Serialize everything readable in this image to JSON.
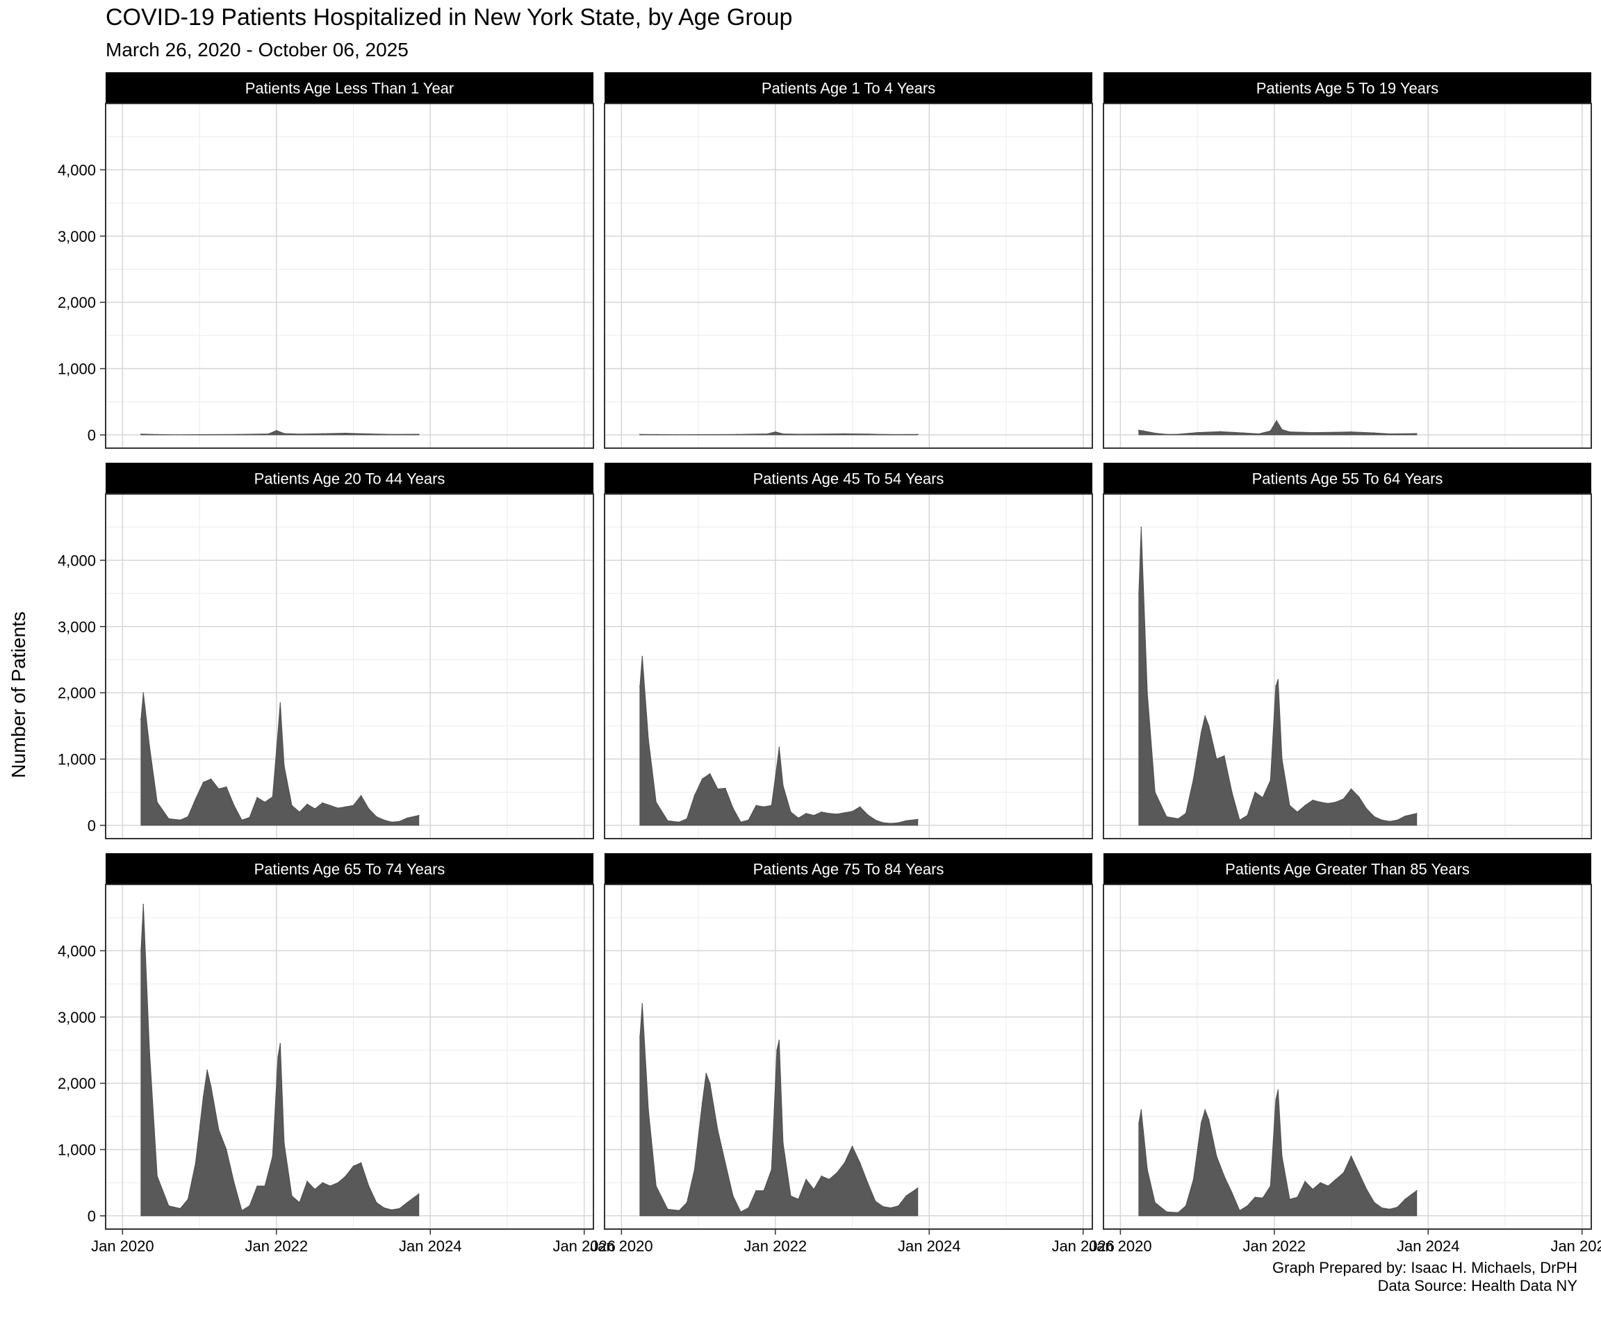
{
  "chart_data": {
    "type": "bar",
    "title": "COVID-19 Patients Hospitalized in New York State, by Age Group",
    "subtitle": "March 26, 2020 - October 06, 2025",
    "ylabel": "Number of Patients",
    "xlabel": "",
    "ylim": [
      -200,
      5000
    ],
    "y_ticks": [
      0,
      1000,
      2000,
      3000,
      4000
    ],
    "y_tick_labels": [
      "0",
      "1,000",
      "2,000",
      "3,000",
      "4,000"
    ],
    "x_tick_labels": [
      "Jan 2020",
      "Jan 2022",
      "Jan 2024",
      "Jan 2026"
    ],
    "x_ticks": [
      2020.0,
      2022.0,
      2024.0,
      2026.0
    ],
    "xlim": [
      2019.78,
      2026.12
    ],
    "grid": true,
    "layout": "facet 3x3",
    "caption": [
      "Graph Prepared by: Isaac H. Michaels, DrPH",
      "Data Source: Health Data NY"
    ],
    "facets": [
      {
        "name": "Patients Age Less Than 1 Year",
        "x": [
          2020.24,
          2020.45,
          2020.7,
          2021.0,
          2021.5,
          2021.9,
          2022.0,
          2022.1,
          2022.3,
          2022.6,
          2022.9,
          2023.2,
          2023.5,
          2023.85
        ],
        "y": [
          12,
          6,
          2,
          4,
          8,
          15,
          65,
          20,
          12,
          18,
          25,
          15,
          8,
          10
        ]
      },
      {
        "name": "Patients Age 1 To 4 Years",
        "x": [
          2020.24,
          2020.45,
          2020.7,
          2021.0,
          2021.5,
          2021.9,
          2022.0,
          2022.1,
          2022.3,
          2022.6,
          2022.9,
          2023.2,
          2023.5,
          2023.85
        ],
        "y": [
          8,
          5,
          3,
          4,
          8,
          15,
          45,
          15,
          10,
          12,
          16,
          12,
          6,
          7
        ]
      },
      {
        "name": "Patients Age 5 To 19 Years",
        "x": [
          2020.24,
          2020.3,
          2020.45,
          2020.6,
          2020.75,
          2021.0,
          2021.3,
          2021.6,
          2021.8,
          2021.95,
          2022.03,
          2022.1,
          2022.2,
          2022.5,
          2022.8,
          2023.0,
          2023.3,
          2023.5,
          2023.85
        ],
        "y": [
          70,
          60,
          25,
          8,
          10,
          35,
          50,
          30,
          15,
          60,
          215,
          80,
          45,
          35,
          40,
          45,
          30,
          15,
          20
        ]
      },
      {
        "name": "Patients Age 20 To 44 Years",
        "x": [
          2020.24,
          2020.27,
          2020.35,
          2020.45,
          2020.6,
          2020.75,
          2020.85,
          2020.95,
          2021.05,
          2021.15,
          2021.25,
          2021.35,
          2021.45,
          2021.55,
          2021.65,
          2021.75,
          2021.85,
          2021.95,
          2022.02,
          2022.05,
          2022.1,
          2022.2,
          2022.3,
          2022.4,
          2022.5,
          2022.6,
          2022.7,
          2022.8,
          2022.9,
          2023.0,
          2023.1,
          2023.2,
          2023.3,
          2023.4,
          2023.5,
          2023.6,
          2023.7,
          2023.85
        ],
        "y": [
          1600,
          2000,
          1200,
          350,
          100,
          80,
          130,
          400,
          650,
          700,
          550,
          580,
          300,
          80,
          120,
          420,
          350,
          430,
          1400,
          1850,
          900,
          300,
          200,
          320,
          250,
          340,
          300,
          260,
          280,
          300,
          450,
          250,
          130,
          80,
          50,
          60,
          110,
          150
        ]
      },
      {
        "name": "Patients Age 45 To 54 Years",
        "x": [
          2020.24,
          2020.27,
          2020.35,
          2020.45,
          2020.6,
          2020.75,
          2020.85,
          2020.95,
          2021.05,
          2021.15,
          2021.25,
          2021.35,
          2021.45,
          2021.55,
          2021.65,
          2021.75,
          2021.85,
          2021.95,
          2022.02,
          2022.05,
          2022.1,
          2022.2,
          2022.3,
          2022.4,
          2022.5,
          2022.6,
          2022.7,
          2022.8,
          2022.9,
          2023.0,
          2023.1,
          2023.2,
          2023.3,
          2023.4,
          2023.5,
          2023.6,
          2023.7,
          2023.85
        ],
        "y": [
          2100,
          2550,
          1300,
          350,
          70,
          50,
          100,
          450,
          700,
          780,
          550,
          560,
          260,
          50,
          80,
          300,
          280,
          300,
          900,
          1180,
          600,
          200,
          110,
          180,
          150,
          200,
          180,
          170,
          190,
          210,
          280,
          160,
          80,
          40,
          30,
          40,
          70,
          90
        ]
      },
      {
        "name": "Patients Age 55 To 64 Years",
        "x": [
          2020.24,
          2020.27,
          2020.35,
          2020.45,
          2020.6,
          2020.75,
          2020.85,
          2020.95,
          2021.05,
          2021.1,
          2021.15,
          2021.25,
          2021.35,
          2021.45,
          2021.55,
          2021.65,
          2021.75,
          2021.85,
          2021.95,
          2022.02,
          2022.05,
          2022.1,
          2022.2,
          2022.3,
          2022.4,
          2022.5,
          2022.6,
          2022.7,
          2022.8,
          2022.9,
          2023.0,
          2023.1,
          2023.2,
          2023.3,
          2023.4,
          2023.5,
          2023.6,
          2023.7,
          2023.85
        ],
        "y": [
          3500,
          4500,
          2000,
          500,
          130,
          100,
          180,
          700,
          1400,
          1650,
          1500,
          1000,
          1050,
          500,
          80,
          150,
          500,
          420,
          680,
          2100,
          2200,
          1000,
          300,
          200,
          300,
          380,
          350,
          330,
          350,
          400,
          550,
          430,
          250,
          130,
          80,
          60,
          80,
          140,
          180
        ]
      },
      {
        "name": "Patients Age 65 To 74 Years",
        "x": [
          2020.24,
          2020.27,
          2020.35,
          2020.45,
          2020.6,
          2020.75,
          2020.85,
          2020.95,
          2021.05,
          2021.1,
          2021.15,
          2021.25,
          2021.35,
          2021.45,
          2021.55,
          2021.65,
          2021.75,
          2021.85,
          2021.95,
          2022.02,
          2022.05,
          2022.1,
          2022.2,
          2022.3,
          2022.4,
          2022.5,
          2022.6,
          2022.7,
          2022.8,
          2022.9,
          2023.0,
          2023.1,
          2023.2,
          2023.3,
          2023.4,
          2023.5,
          2023.6,
          2023.7,
          2023.85
        ],
        "y": [
          4000,
          4700,
          2500,
          600,
          150,
          110,
          250,
          800,
          1800,
          2200,
          1950,
          1300,
          1000,
          500,
          80,
          150,
          450,
          450,
          900,
          2400,
          2600,
          1100,
          300,
          200,
          520,
          400,
          500,
          450,
          500,
          600,
          750,
          800,
          450,
          200,
          120,
          90,
          110,
          200,
          330
        ]
      },
      {
        "name": "Patients Age 75 To 84 Years",
        "x": [
          2020.24,
          2020.27,
          2020.35,
          2020.45,
          2020.6,
          2020.75,
          2020.85,
          2020.95,
          2021.05,
          2021.1,
          2021.15,
          2021.25,
          2021.35,
          2021.45,
          2021.55,
          2021.65,
          2021.75,
          2021.85,
          2021.95,
          2022.02,
          2022.05,
          2022.1,
          2022.2,
          2022.3,
          2022.4,
          2022.5,
          2022.6,
          2022.7,
          2022.8,
          2022.9,
          2023.0,
          2023.1,
          2023.2,
          2023.3,
          2023.4,
          2023.5,
          2023.6,
          2023.7,
          2023.85
        ],
        "y": [
          2700,
          3200,
          1600,
          450,
          100,
          80,
          200,
          700,
          1700,
          2150,
          2000,
          1300,
          800,
          300,
          60,
          120,
          380,
          380,
          700,
          2500,
          2650,
          1100,
          300,
          250,
          550,
          400,
          600,
          550,
          650,
          800,
          1050,
          800,
          500,
          220,
          140,
          120,
          150,
          300,
          420
        ]
      },
      {
        "name": "Patients Age Greater Than 85 Years",
        "x": [
          2020.24,
          2020.27,
          2020.35,
          2020.45,
          2020.6,
          2020.75,
          2020.85,
          2020.95,
          2021.05,
          2021.1,
          2021.15,
          2021.25,
          2021.35,
          2021.45,
          2021.55,
          2021.65,
          2021.75,
          2021.85,
          2021.95,
          2022.02,
          2022.05,
          2022.1,
          2022.2,
          2022.3,
          2022.4,
          2022.5,
          2022.6,
          2022.7,
          2022.8,
          2022.9,
          2023.0,
          2023.1,
          2023.2,
          2023.3,
          2023.4,
          2023.5,
          2023.6,
          2023.7,
          2023.85
        ],
        "y": [
          1400,
          1600,
          700,
          200,
          60,
          50,
          150,
          550,
          1400,
          1600,
          1450,
          900,
          600,
          350,
          80,
          150,
          280,
          270,
          450,
          1750,
          1900,
          900,
          250,
          280,
          520,
          400,
          500,
          450,
          550,
          650,
          900,
          650,
          400,
          200,
          120,
          100,
          130,
          250,
          380
        ]
      }
    ]
  }
}
